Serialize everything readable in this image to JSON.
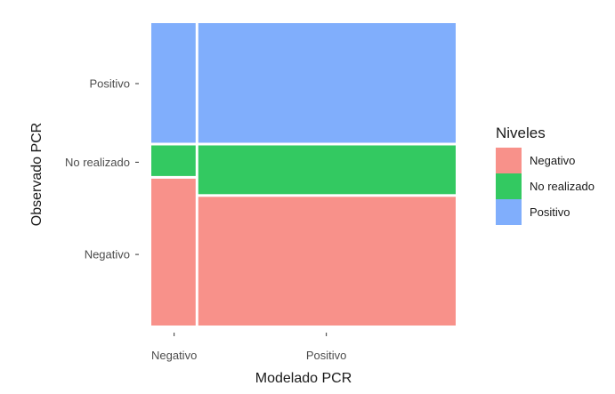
{
  "chart_data": {
    "type": "mosaic",
    "xlabel": "Modelado PCR",
    "ylabel": "Observado PCR",
    "x_categories": [
      "Negativo",
      "Positivo"
    ],
    "x_widths": [
      0.15,
      0.85
    ],
    "y_categories": [
      "Negativo",
      "No realizado",
      "Positivo"
    ],
    "proportions": {
      "Negativo": [
        0.49,
        0.11,
        0.4
      ],
      "Positivo": [
        0.43,
        0.17,
        0.4
      ]
    },
    "y_tick_positions": [
      0.235,
      0.54,
      0.8
    ],
    "legend": {
      "title": "Niveles",
      "position": "right",
      "items": [
        {
          "label": "Negativo",
          "color": "#F8918A"
        },
        {
          "label": "No realizado",
          "color": "#33C961"
        },
        {
          "label": "Positivo",
          "color": "#80AEFC"
        }
      ]
    },
    "grid": false
  }
}
